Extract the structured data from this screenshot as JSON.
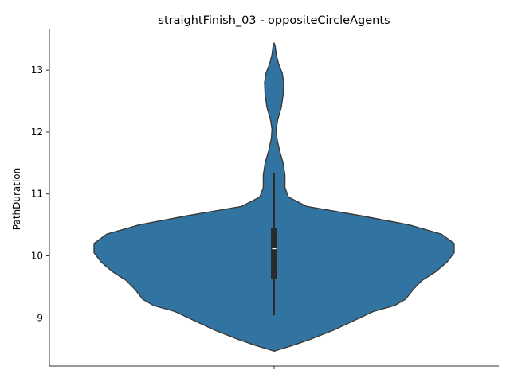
{
  "chart_data": {
    "type": "violin",
    "title": "straightFinish_03 - oppositeCircleAgents",
    "xlabel": "",
    "ylabel": "PathDuration",
    "ylim": [
      8.22,
      13.67
    ],
    "yticks": [
      9,
      10,
      11,
      12,
      13
    ],
    "xticks": [
      ""
    ],
    "grid": false,
    "colors": {
      "fill": "#3274a1",
      "edge": "#3a3a3a",
      "box": "#2b2b2b",
      "median": "#ffffff"
    },
    "violin": {
      "profile": [
        [
          8.46,
          0.0
        ],
        [
          8.48,
          0.02
        ],
        [
          8.55,
          0.1
        ],
        [
          8.65,
          0.2
        ],
        [
          8.8,
          0.33
        ],
        [
          8.95,
          0.44
        ],
        [
          9.1,
          0.55
        ],
        [
          9.2,
          0.67
        ],
        [
          9.3,
          0.73
        ],
        [
          9.45,
          0.77
        ],
        [
          9.6,
          0.82
        ],
        [
          9.75,
          0.9
        ],
        [
          9.9,
          0.96
        ],
        [
          10.05,
          1.0
        ],
        [
          10.2,
          1.0
        ],
        [
          10.35,
          0.93
        ],
        [
          10.5,
          0.75
        ],
        [
          10.65,
          0.48
        ],
        [
          10.8,
          0.18
        ],
        [
          10.95,
          0.08
        ],
        [
          11.1,
          0.06
        ],
        [
          11.3,
          0.06
        ],
        [
          11.5,
          0.05
        ],
        [
          11.7,
          0.03
        ],
        [
          11.9,
          0.015
        ],
        [
          12.05,
          0.012
        ],
        [
          12.2,
          0.02
        ],
        [
          12.4,
          0.04
        ],
        [
          12.6,
          0.05
        ],
        [
          12.8,
          0.053
        ],
        [
          12.95,
          0.045
        ],
        [
          13.1,
          0.025
        ],
        [
          13.25,
          0.012
        ],
        [
          13.38,
          0.006
        ],
        [
          13.44,
          0.0
        ]
      ],
      "box": {
        "whisker_low": 9.04,
        "q1": 9.63,
        "median": 10.12,
        "q3": 10.45,
        "whisker_high": 11.33
      }
    }
  }
}
